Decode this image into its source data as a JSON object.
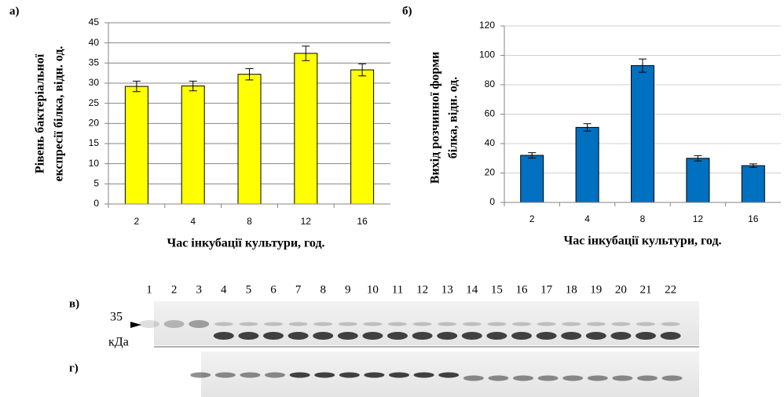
{
  "chart_data": [
    {
      "type": "bar",
      "panel_label": "а)",
      "ylabel": [
        "Рівень бактеріальної",
        "експресії білка, відн. од."
      ],
      "xlabel": "Час інкубації культури, год.",
      "categories": [
        "2",
        "4",
        "8",
        "12",
        "16"
      ],
      "values": [
        29.2,
        29.3,
        32.2,
        37.4,
        33.3
      ],
      "errors": [
        1.3,
        1.2,
        1.4,
        1.8,
        1.5
      ],
      "color": "#ffff00",
      "ylim": [
        0,
        45
      ],
      "yticks": [
        0,
        5,
        10,
        15,
        20,
        25,
        30,
        35,
        40,
        45
      ],
      "grid": true
    },
    {
      "type": "bar",
      "panel_label": "б)",
      "ylabel": [
        "Вихід розчинної форми",
        "білка, відн. од."
      ],
      "xlabel": "Час інкубації культури, год.",
      "categories": [
        "2",
        "4",
        "8",
        "12",
        "16"
      ],
      "values": [
        32,
        51,
        93,
        30,
        25
      ],
      "errors": [
        1.8,
        2.5,
        4.5,
        1.8,
        1.2
      ],
      "color": "#0070c0",
      "ylim": [
        0,
        120
      ],
      "yticks": [
        0,
        20,
        40,
        60,
        80,
        100,
        120
      ],
      "grid": true
    }
  ],
  "gel": {
    "panel_labels": [
      "в)",
      "г)"
    ],
    "marker": "35",
    "marker_unit": "кДа",
    "lanes": [
      "1",
      "2",
      "3",
      "4",
      "5",
      "6",
      "7",
      "8",
      "9",
      "10",
      "11",
      "12",
      "13",
      "14",
      "15",
      "16",
      "17",
      "18",
      "19",
      "20",
      "21",
      "22"
    ]
  }
}
